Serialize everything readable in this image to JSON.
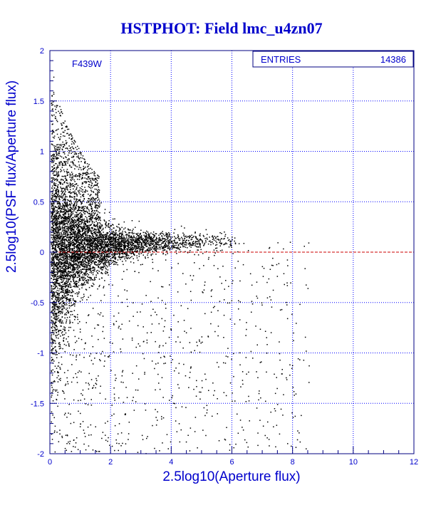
{
  "chart_data": {
    "type": "scatter",
    "title": "HSTPHOT: Field lmc_u4zn07",
    "xlabel": "2.5log10(Aperture flux)",
    "ylabel": "2.5log10(PSF flux/Aperture flux)",
    "xlim": [
      0,
      12
    ],
    "ylim": [
      -2,
      2
    ],
    "x_ticks": [
      "0",
      "2",
      "4",
      "6",
      "8",
      "10",
      "12"
    ],
    "y_ticks": [
      "-2",
      "-1.5",
      "-1",
      "-0.5",
      "0",
      "0.5",
      "1",
      "1.5",
      "2"
    ],
    "grid": true,
    "reference_line_y": 0,
    "filter_label": "F439W",
    "stats": {
      "entries_label": "ENTRIES",
      "entries_value": "14386"
    },
    "colors": {
      "text": "#0000cc",
      "frame": "#000080",
      "grid": "#0000ff",
      "points": "#000000",
      "reference_line": "#cc0000"
    }
  }
}
